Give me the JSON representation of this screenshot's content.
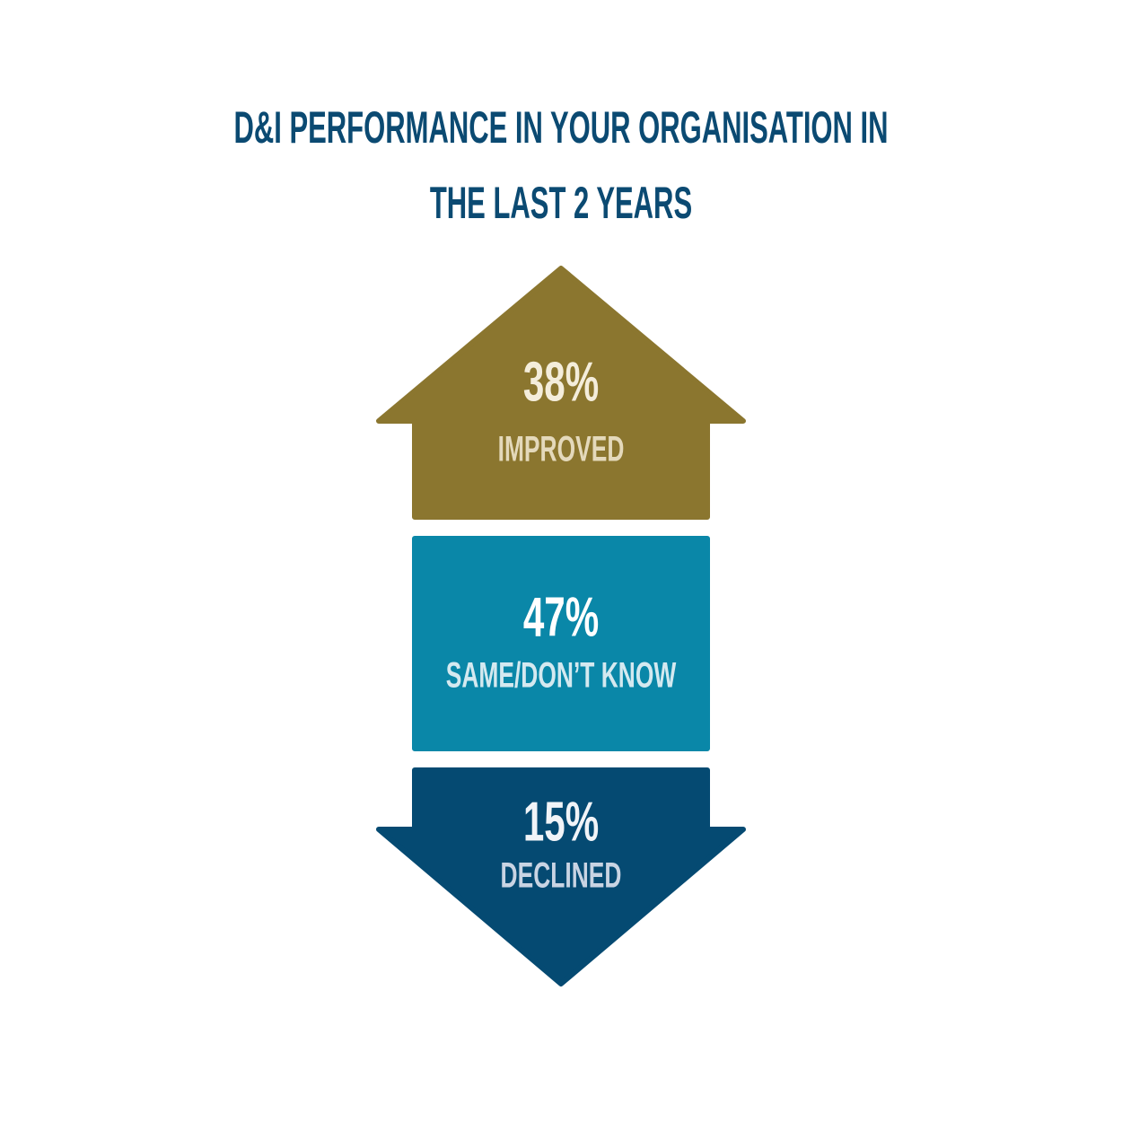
{
  "chart_data": {
    "type": "arrow-stack",
    "title": "D&I PERFORMANCE IN YOUR ORGANISATION IN THE LAST 2 YEARS",
    "categories": [
      "IMPROVED",
      "SAME/DON’T KNOW",
      "DECLINED"
    ],
    "values": [
      38,
      47,
      15
    ],
    "value_labels": [
      "38%",
      "47%",
      "15%"
    ],
    "colors": [
      "#8b762f",
      "#0a87a8",
      "#054a72"
    ]
  }
}
